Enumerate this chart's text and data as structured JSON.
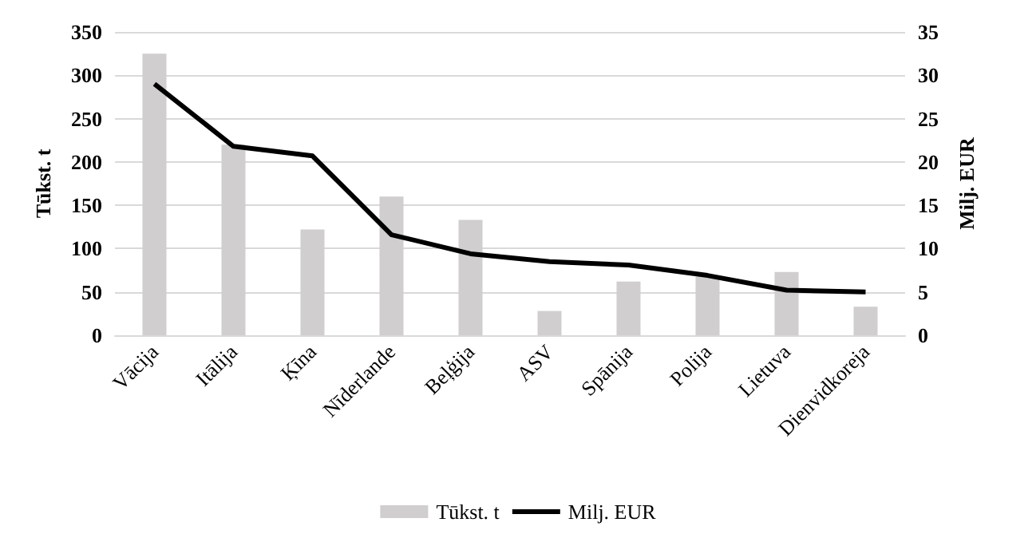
{
  "chart_data": {
    "type": "bar",
    "ylabel": "Tūkst. t",
    "y2label": "Milj. EUR",
    "categories": [
      "Vācija",
      "Itālija",
      "Ķīna",
      "Nīderlande",
      "Beļģija",
      "ASV",
      "Spānija",
      "Polija",
      "Lietuva",
      "Dienvidkoreja"
    ],
    "series": [
      {
        "name": "Tūkst. t",
        "color": "#d0cece",
        "values": [
          325,
          220,
          122,
          160,
          133,
          28,
          62,
          68,
          73,
          33
        ]
      },
      {
        "name": "Milj. EUR",
        "type": "line",
        "axis": "y2",
        "color": "#000000",
        "values": [
          29,
          21.8,
          20.7,
          11.6,
          9.4,
          8.5,
          8.1,
          6.9,
          5.2,
          5.0
        ]
      }
    ],
    "ylim": [
      0,
      350
    ],
    "yticks": [
      0,
      50,
      100,
      150,
      200,
      250,
      300,
      350
    ],
    "y2lim": [
      0,
      35
    ],
    "y2ticks": [
      0,
      5,
      10,
      15,
      20,
      25,
      30,
      35
    ],
    "grid": "y",
    "legend": "bottom",
    "marker": "none",
    "line_style": "solid"
  }
}
